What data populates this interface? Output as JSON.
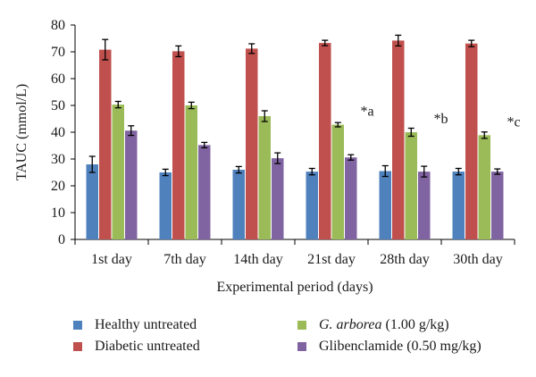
{
  "chart_data": {
    "type": "bar",
    "categories": [
      "1st day",
      "7th day",
      "14th day",
      "21st day",
      "28th day",
      "30th day"
    ],
    "xlabel": "Experimental period (days)",
    "ylabel": "TAUC (mmol/L)",
    "ylim": [
      0,
      80
    ],
    "yticks": [
      0,
      10,
      20,
      30,
      40,
      50,
      60,
      70,
      80
    ],
    "grid": false,
    "legend_position": "bottom",
    "series": [
      {
        "name": "Healthy untreated",
        "color": "#4f81bd",
        "values": [
          28,
          25,
          26,
          25.3,
          25.5,
          25.3
        ],
        "errors": [
          3,
          1.2,
          1.2,
          1.2,
          2,
          1.2
        ]
      },
      {
        "name": "Diabetic untreated",
        "color": "#c0504d",
        "values": [
          70.8,
          70.2,
          71.2,
          73.3,
          74.2,
          73.1
        ],
        "errors": [
          3.8,
          2,
          1.8,
          1,
          2,
          1.2
        ]
      },
      {
        "name": "G. arborea (1.00 g/kg)",
        "name_italic": "G. arborea",
        "name_rest": " (1.00 g/kg)",
        "color": "#9bbb59",
        "values": [
          50.3,
          50,
          46,
          42.8,
          40,
          38.9
        ],
        "errors": [
          1.2,
          1.2,
          2,
          0.8,
          1.5,
          1.2
        ]
      },
      {
        "name": "Glibenclamide (0.50 mg/kg)",
        "color": "#8064a2",
        "values": [
          40.6,
          35.2,
          30.3,
          30.6,
          25.3,
          25.3
        ],
        "errors": [
          1.8,
          1,
          2,
          1,
          2,
          1
        ]
      }
    ],
    "annotations": [
      {
        "category_index": 3,
        "text": "*a"
      },
      {
        "category_index": 4,
        "text": "*b"
      },
      {
        "category_index": 5,
        "text": "*c"
      }
    ]
  }
}
